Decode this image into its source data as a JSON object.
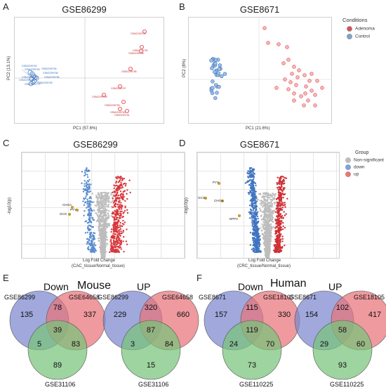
{
  "panels": {
    "A": {
      "letter": "A",
      "title": "GSE86299",
      "xlabel": "PC1 (57.6%)",
      "ylabel": "PC2 (13.1%)"
    },
    "B": {
      "letter": "B",
      "title": "GSE8671",
      "xlabel": "PC1 (21.6%)",
      "ylabel": "PC2 (8%)",
      "legend": {
        "title": "Conditions",
        "items": [
          "Adenoma",
          "Control"
        ]
      }
    },
    "C": {
      "letter": "C",
      "title": "GSE86299",
      "xlabel": "Log Fold Change",
      "xlabel2": "(CAC_tissue/Normal_tissue)",
      "ylabel": "-log10(p)"
    },
    "D": {
      "letter": "D",
      "title": "GSE8671",
      "xlabel": "Log Fold Change",
      "xlabel2": "(CRC_tissue/Normal_tissue)",
      "ylabel": "-log10(p)",
      "legend": {
        "title": "Group",
        "items": [
          "Non-significant",
          "down",
          "up"
        ]
      }
    },
    "E": {
      "letter": "E",
      "species": "Mouse"
    },
    "F": {
      "letter": "F",
      "species": "Human"
    }
  },
  "chart_data": [
    {
      "type": "scatter",
      "title": "GSE86299",
      "xlabel": "PC1 (57.6%)",
      "ylabel": "PC2 (13.1%)",
      "series": [
        {
          "name": "blue",
          "labels": [
            "GSM2299762",
            "GSM2299763",
            "GSM2299764",
            "GSM2299765",
            "GSM2299766",
            "GSM2299767",
            "GSM2299768",
            "GSM2299769",
            "GSM2299770"
          ]
        },
        {
          "name": "red",
          "labels": [
            "GSM2299753",
            "GSM2299754",
            "GSM2299755",
            "GSM2299756",
            "GSM2299757",
            "GSM2299758",
            "GSM2299759",
            "GSM2299760",
            "GSM2299761"
          ]
        }
      ]
    },
    {
      "type": "scatter",
      "title": "GSE8671",
      "xlabel": "PC1 (21.6%)",
      "ylabel": "PC2 (8%)",
      "series": [
        {
          "name": "Adenoma"
        },
        {
          "name": "Control"
        }
      ]
    },
    {
      "type": "scatter",
      "title": "GSE86299",
      "xlabel": "Log Fold Change (CAC_tissue/Normal_tissue)",
      "ylabel": "-log10(p)",
      "annotations": [
        "CHGA",
        "GCG",
        "PYY"
      ]
    },
    {
      "type": "scatter",
      "title": "GSE8671",
      "xlabel": "Log Fold Change (CRC_tissue/Normal_tissue)",
      "ylabel": "-log10(p)",
      "annotations": [
        "PYY",
        "GCG",
        "CHGA",
        "DPP4"
      ],
      "series": [
        {
          "name": "Non-significant"
        },
        {
          "name": "down"
        },
        {
          "name": "up"
        }
      ]
    },
    {
      "type": "venn",
      "species": "Mouse",
      "direction": "Down",
      "sets": [
        "GSE86299",
        "GSE64658",
        "GSE31106"
      ],
      "regions": {
        "A": 135,
        "B": 337,
        "C": 89,
        "AB": 78,
        "AC": 5,
        "BC": 83,
        "ABC": 39
      }
    },
    {
      "type": "venn",
      "species": "Mouse",
      "direction": "UP",
      "sets": [
        "GSE86299",
        "GSE64658",
        "GSE31106"
      ],
      "regions": {
        "A": 229,
        "B": 660,
        "C": 15,
        "AB": 320,
        "AC": 3,
        "BC": 84,
        "ABC": 87
      }
    },
    {
      "type": "venn",
      "species": "Human",
      "direction": "Down",
      "sets": [
        "GSE8671",
        "GSE18105",
        "GSE110225"
      ],
      "regions": {
        "A": 157,
        "B": 330,
        "C": 73,
        "AB": 115,
        "AC": 24,
        "BC": 70,
        "ABC": 119
      }
    },
    {
      "type": "venn",
      "species": "Human",
      "direction": "UP",
      "sets": [
        "GSE8671",
        "GSE18105",
        "GSE110225"
      ],
      "regions": {
        "A": 154,
        "B": 417,
        "C": 93,
        "AB": 102,
        "AC": 29,
        "BC": 60,
        "ABC": 58
      }
    }
  ],
  "colors": {
    "red": "#e34a4f",
    "blue": "#4a7cc3",
    "grey": "#bdbdbd",
    "gold": "#d8a31e",
    "vennA": "#7b86cf",
    "vennB": "#e8737a",
    "vennC": "#78c47a"
  }
}
